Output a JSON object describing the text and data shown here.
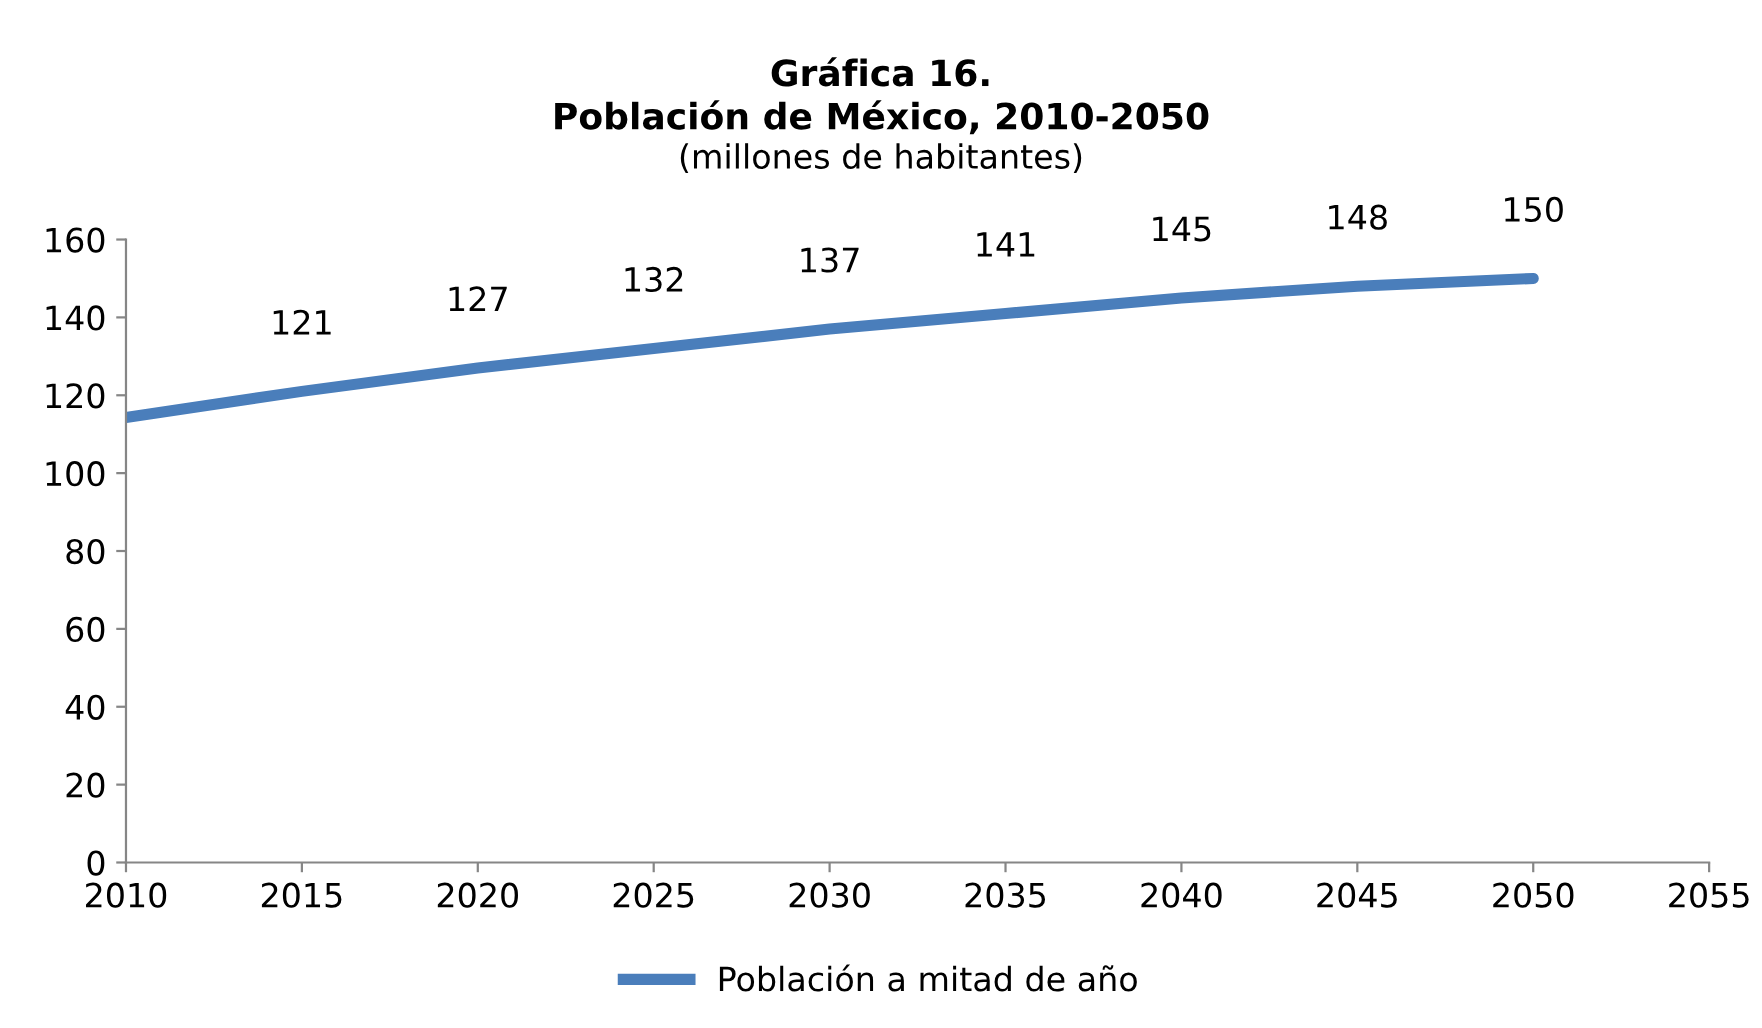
{
  "chart_data": {
    "type": "line",
    "title": "Gráfica 16.\nPoblación de México, 2010-2050",
    "subtitle": "(millones de habitantes)",
    "x": [
      2010,
      2015,
      2020,
      2025,
      2030,
      2035,
      2040,
      2045,
      2050
    ],
    "series": [
      {
        "name": "Población a mitad de año",
        "color": "#4a7ebb",
        "values": [
          114.3,
          121,
          127,
          132,
          137,
          141,
          145,
          148,
          150
        ],
        "value_labels": [
          null,
          "121",
          "127",
          "132",
          "137",
          "141",
          "145",
          "148",
          "150"
        ]
      }
    ],
    "xlim": [
      2010,
      2055
    ],
    "xticks": [
      2010,
      2015,
      2020,
      2025,
      2030,
      2035,
      2040,
      2045,
      2050,
      2055
    ],
    "ylim": [
      0,
      160
    ],
    "yticks": [
      0,
      20,
      40,
      60,
      80,
      100,
      120,
      140,
      160
    ],
    "grid": false,
    "legend": "bottom",
    "marker": "none",
    "line_style": "solid"
  }
}
